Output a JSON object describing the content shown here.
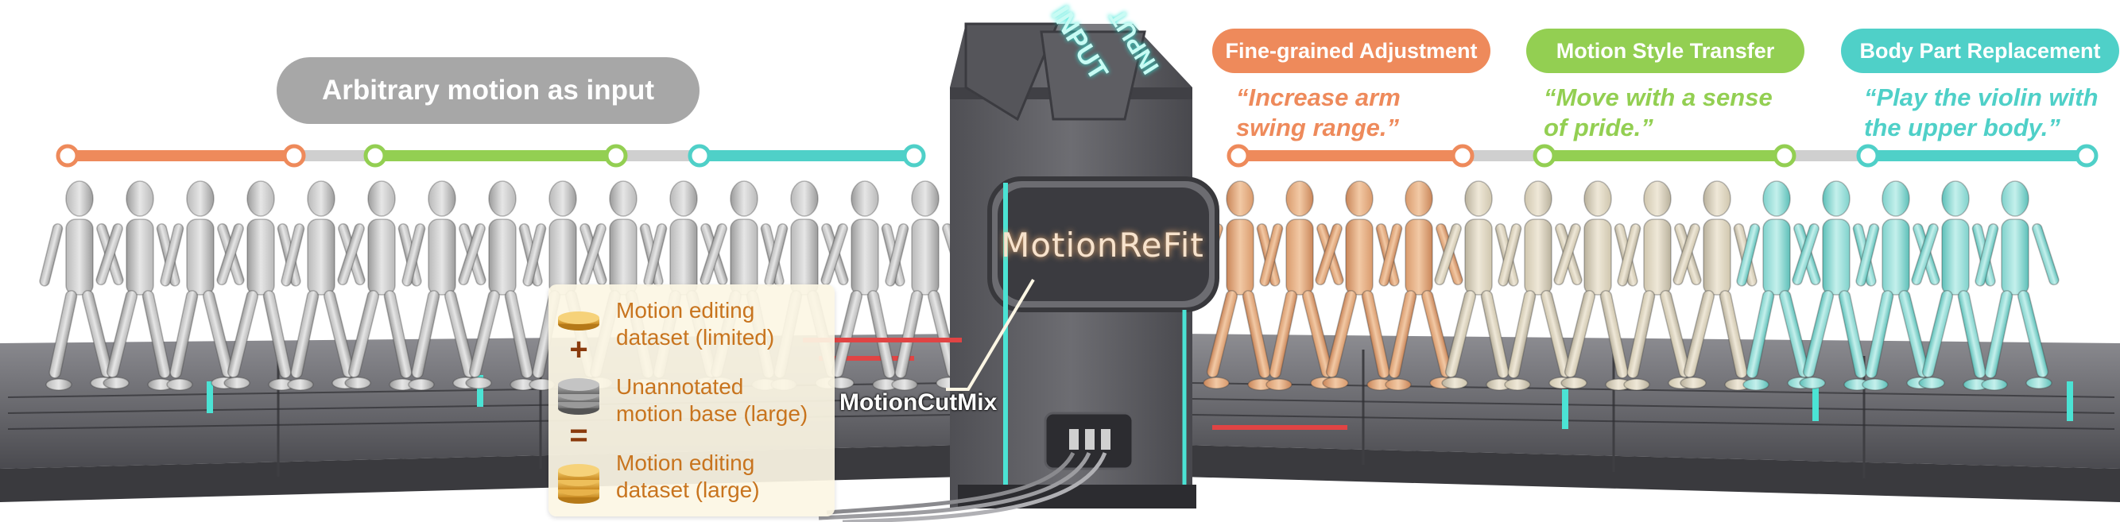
{
  "input_pill": {
    "label": "Arbitrary motion as input",
    "color": "#a7a7a7"
  },
  "tasks": [
    {
      "label": "Fine-grained Adjustment",
      "color": "#ee8a5b",
      "quote": "“Increase arm\nswing range.”"
    },
    {
      "label": "Motion Style Transfer",
      "color": "#93cf52",
      "quote": "“Move with a sense\nof pride.”"
    },
    {
      "label": "Body Part Replacement",
      "color": "#4fd0c8",
      "quote": "“Play the violin with\nthe upper body.”"
    }
  ],
  "machine": {
    "brand": "MotionReFit",
    "roof_text": "INPUT",
    "roof_text_2": "INPUT"
  },
  "cutmix_label": "MotionCutMix",
  "legend": {
    "item1": "Motion editing\ndataset (limited)",
    "op1": "+",
    "item2": "Unannotated\nmotion base (large)",
    "op2": "=",
    "item3": "Motion editing\ndataset (large)"
  },
  "colors": {
    "coin_gold": "#e2a43a",
    "coin_gray": "#8c8c8c",
    "machine": "#5c5c60",
    "conveyor": "#6a6a6e"
  }
}
